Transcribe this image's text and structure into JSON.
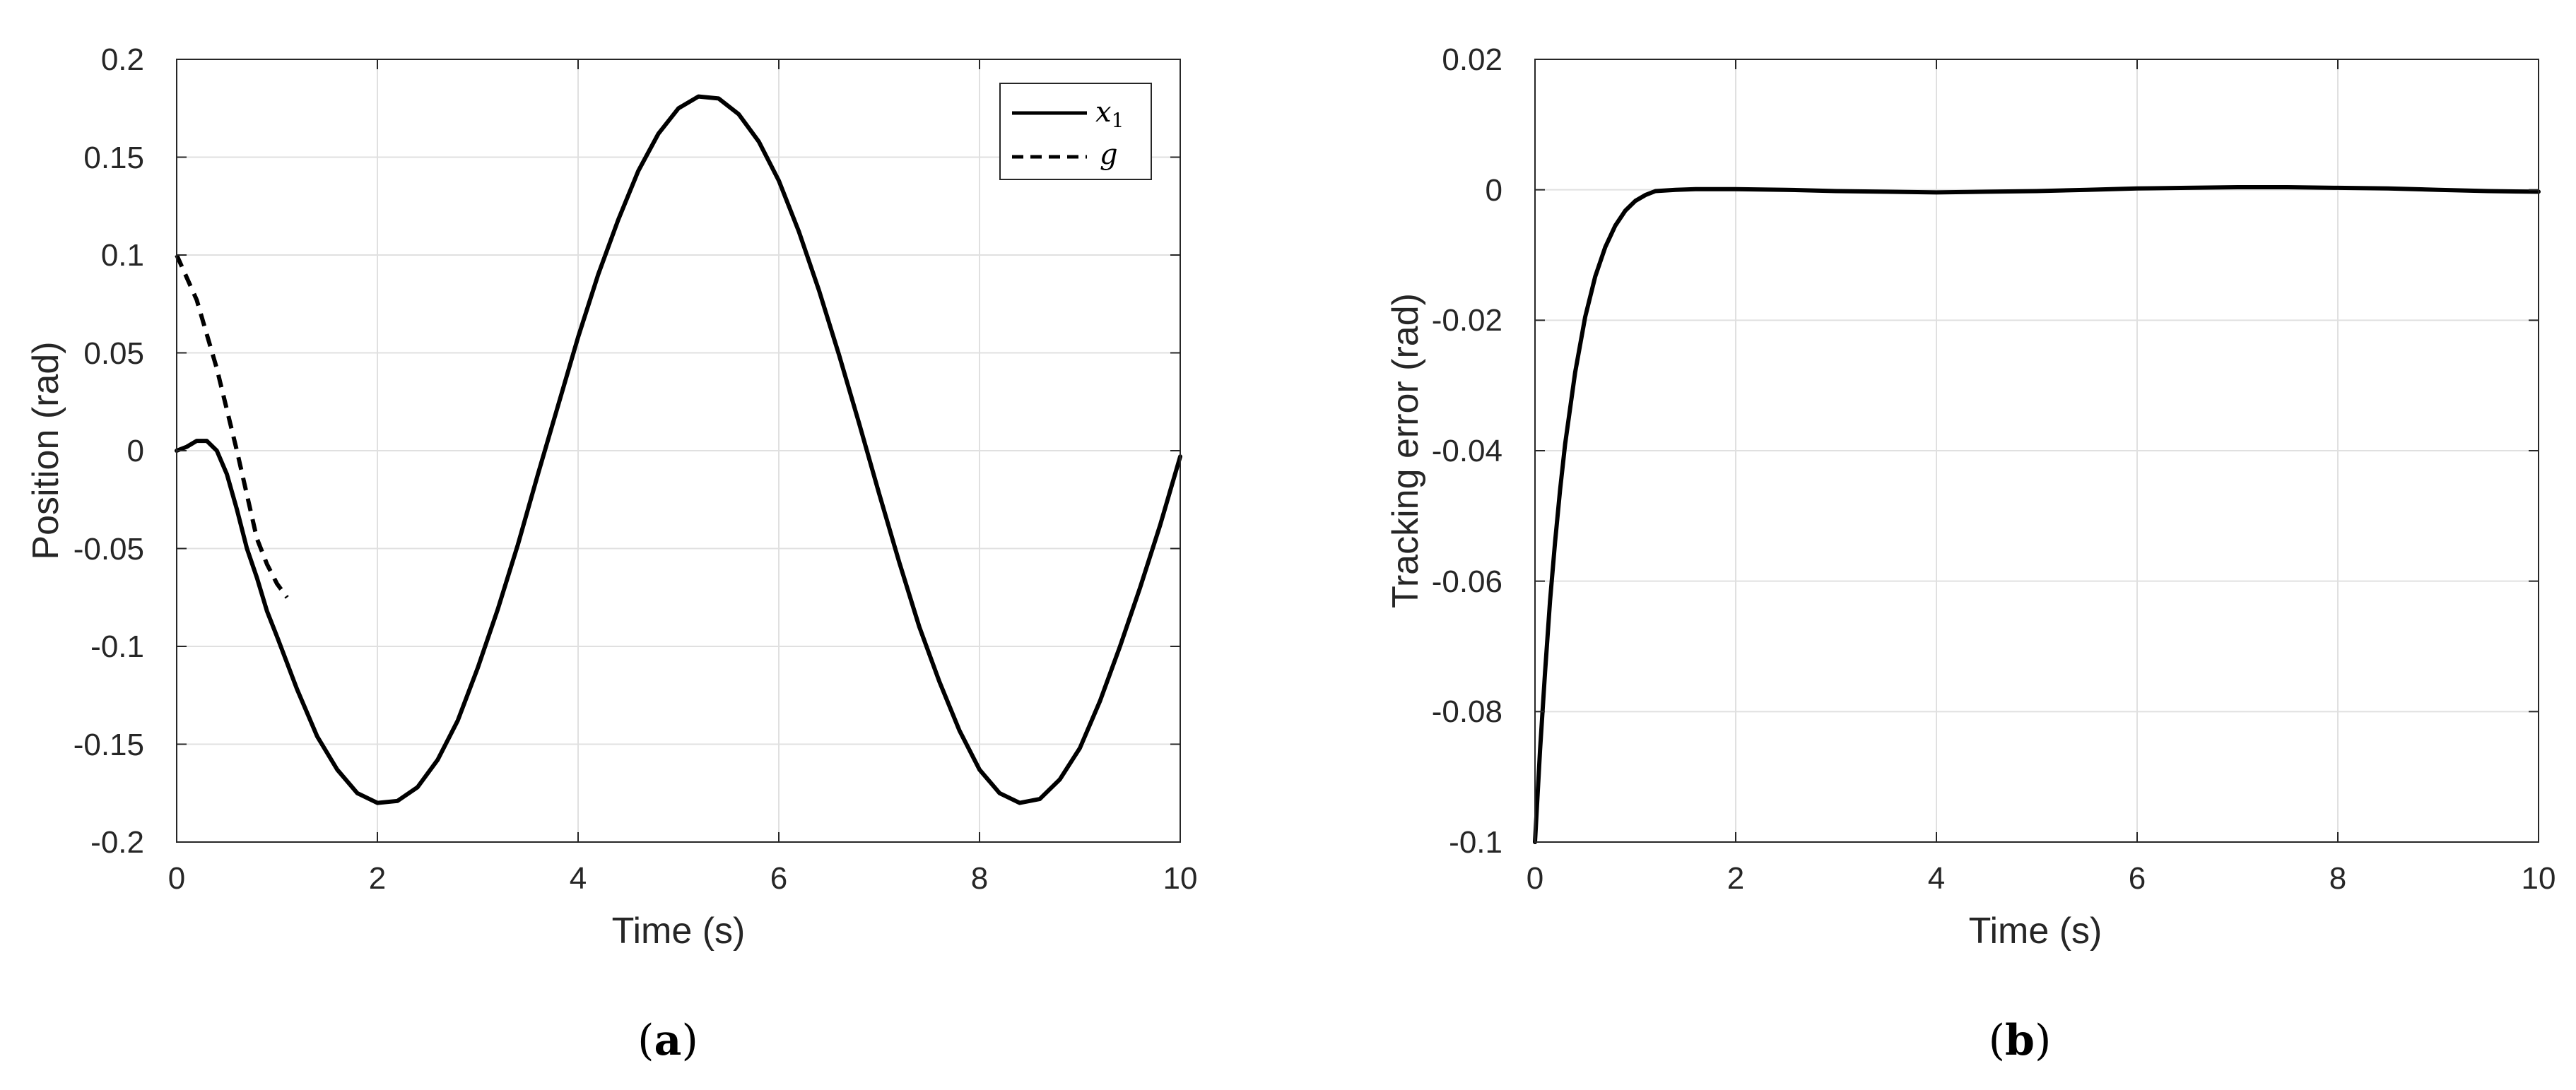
{
  "chart_data": [
    {
      "type": "line",
      "panel_label": {
        "open": "(",
        "letter": "a",
        "close": ")"
      },
      "xlabel": "Time (s)",
      "ylabel": "Position (rad)",
      "xlim": [
        0,
        10
      ],
      "ylim": [
        -0.2,
        0.2
      ],
      "xticks": [
        0,
        2,
        4,
        6,
        8,
        10
      ],
      "xtick_labels": [
        "0",
        "2",
        "4",
        "6",
        "8",
        "10"
      ],
      "yticks": [
        0.2,
        0.15,
        0.1,
        0.05,
        0,
        -0.05,
        -0.1,
        -0.15,
        -0.2
      ],
      "ytick_labels": [
        "0.2",
        "0.15",
        "0.1",
        "0.05",
        "0",
        "-0.05",
        "-0.1",
        "-0.15",
        "-0.2"
      ],
      "grid": true,
      "legend_position": "top-right",
      "series": [
        {
          "name": "x",
          "subscript": "1",
          "style": "solid",
          "color": "#000000",
          "x": [
            0,
            0.1,
            0.2,
            0.3,
            0.4,
            0.5,
            0.6,
            0.7,
            0.8,
            0.9,
            1.0,
            1.2,
            1.4,
            1.6,
            1.8,
            2.0,
            2.2,
            2.4,
            2.6,
            2.8,
            3.0,
            3.2,
            3.4,
            3.6,
            3.8,
            4.0,
            4.2,
            4.4,
            4.6,
            4.8,
            5.0,
            5.2,
            5.4,
            5.6,
            5.8,
            6.0,
            6.2,
            6.4,
            6.6,
            6.8,
            7.0,
            7.2,
            7.4,
            7.6,
            7.8,
            8.0,
            8.2,
            8.4,
            8.6,
            8.8,
            9.0,
            9.2,
            9.4,
            9.6,
            9.8,
            10.0
          ],
          "y": [
            0,
            0.002,
            0.005,
            0.005,
            0.0,
            -0.012,
            -0.03,
            -0.05,
            -0.065,
            -0.082,
            -0.095,
            -0.122,
            -0.146,
            -0.163,
            -0.175,
            -0.18,
            -0.179,
            -0.172,
            -0.158,
            -0.138,
            -0.111,
            -0.081,
            -0.048,
            -0.012,
            0.023,
            0.058,
            0.09,
            0.118,
            0.143,
            0.162,
            0.175,
            0.181,
            0.18,
            0.172,
            0.158,
            0.138,
            0.112,
            0.082,
            0.049,
            0.014,
            -0.022,
            -0.057,
            -0.09,
            -0.118,
            -0.143,
            -0.163,
            -0.175,
            -0.18,
            -0.178,
            -0.168,
            -0.152,
            -0.128,
            -0.1,
            -0.07,
            -0.038,
            -0.003
          ]
        },
        {
          "name": "g",
          "style": "dashed",
          "color": "#000000",
          "x": [
            0,
            0.2,
            0.4,
            0.6,
            0.8,
            0.9,
            1.0,
            1.1
          ],
          "y": [
            0.1,
            0.077,
            0.042,
            0.0,
            -0.045,
            -0.058,
            -0.068,
            -0.075
          ]
        }
      ]
    },
    {
      "type": "line",
      "panel_label": {
        "open": "(",
        "letter": "b",
        "close": ")"
      },
      "xlabel": "Time (s)",
      "ylabel": "Tracking error (rad)",
      "xlim": [
        0,
        10
      ],
      "ylim": [
        -0.1,
        0.02
      ],
      "xticks": [
        0,
        2,
        4,
        6,
        8,
        10
      ],
      "xtick_labels": [
        "0",
        "2",
        "4",
        "6",
        "8",
        "10"
      ],
      "yticks": [
        0.02,
        0,
        -0.02,
        -0.04,
        -0.06,
        -0.08,
        -0.1
      ],
      "ytick_labels": [
        "0.02",
        "0",
        "-0.02",
        "-0.04",
        "-0.06",
        "-0.08",
        "-0.1"
      ],
      "grid": true,
      "series": [
        {
          "style": "solid",
          "color": "#000000",
          "x": [
            0,
            0.05,
            0.1,
            0.15,
            0.2,
            0.25,
            0.3,
            0.4,
            0.5,
            0.6,
            0.7,
            0.8,
            0.9,
            1.0,
            1.1,
            1.2,
            1.4,
            1.6,
            1.8,
            2.0,
            2.5,
            3.0,
            3.5,
            4.0,
            4.5,
            5.0,
            5.5,
            6.0,
            6.5,
            7.0,
            7.5,
            8.0,
            8.5,
            9.0,
            9.5,
            10.0
          ],
          "y": [
            -0.1,
            -0.086,
            -0.074,
            -0.063,
            -0.054,
            -0.046,
            -0.039,
            -0.028,
            -0.0195,
            -0.0133,
            -0.0088,
            -0.0055,
            -0.0032,
            -0.0017,
            -0.0008,
            -0.0002,
            0.0,
            0.0001,
            0.0001,
            0.0001,
            0.0,
            -0.0002,
            -0.0003,
            -0.0004,
            -0.0003,
            -0.0002,
            0.0,
            0.0002,
            0.0003,
            0.0004,
            0.0004,
            0.0003,
            0.0002,
            0.0,
            -0.0002,
            -0.0003
          ]
        }
      ]
    }
  ]
}
